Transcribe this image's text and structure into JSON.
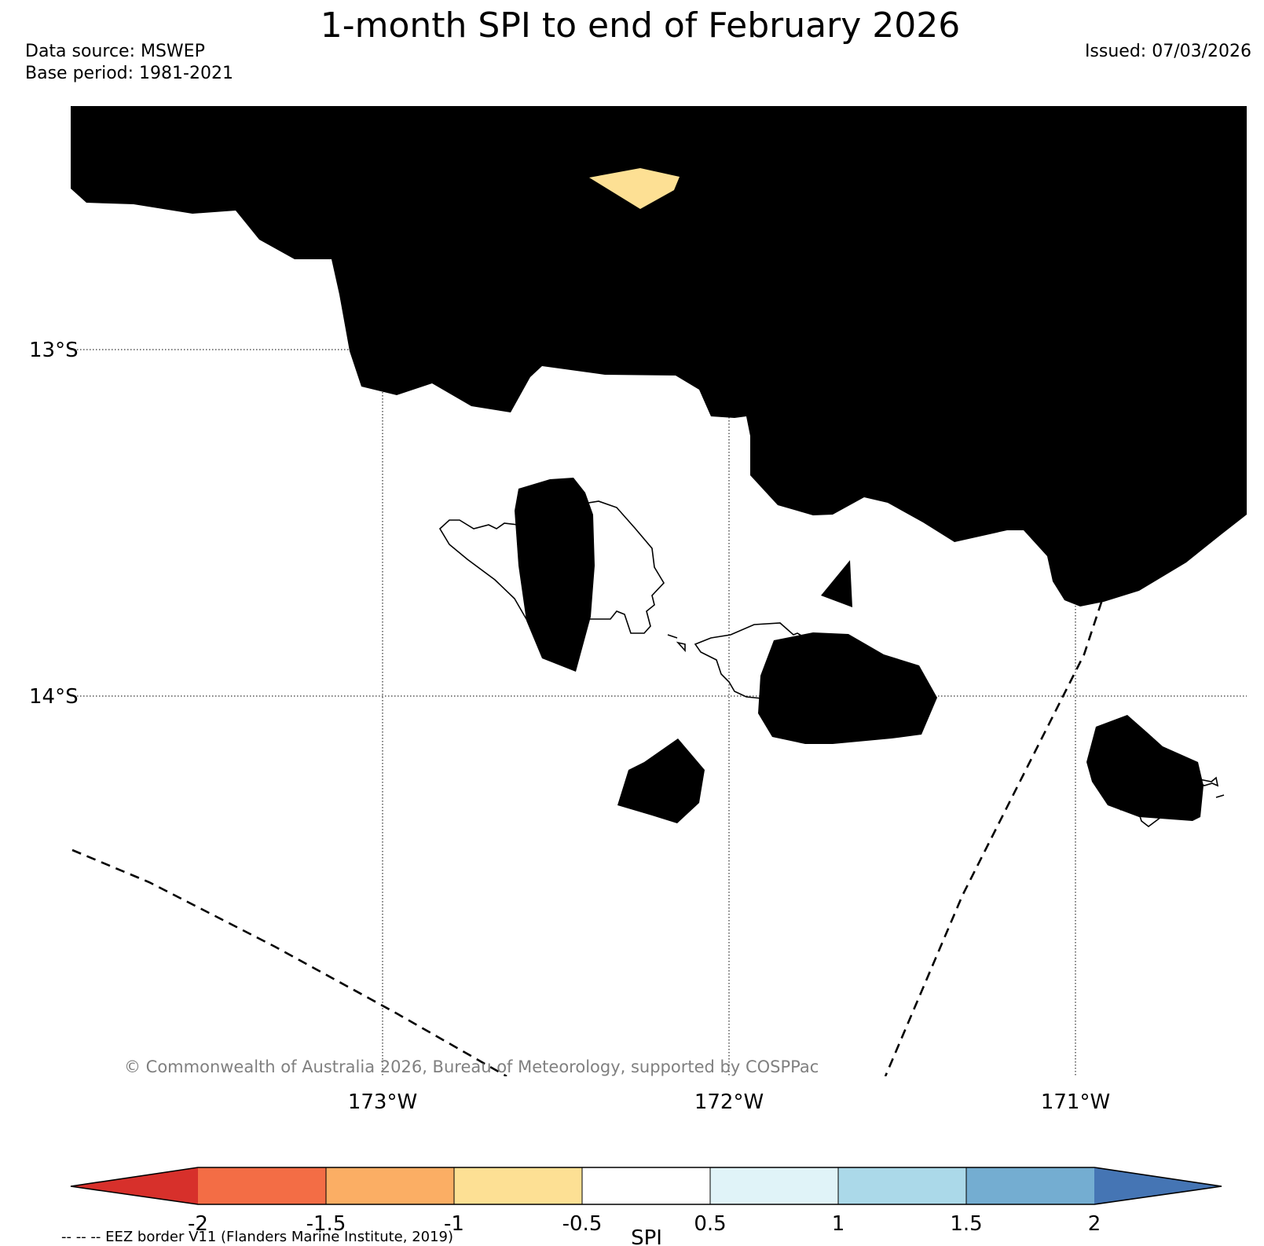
{
  "header": {
    "title": "1-month SPI to end of February 2026",
    "data_source": "Data source: MSWEP",
    "base_period": "Base period: 1981-2021",
    "issued": "Issued: 07/03/2026"
  },
  "map": {
    "lat_labels": [
      "13°S",
      "14°S"
    ],
    "lon_labels": [
      "173°W",
      "172°W",
      "171°W"
    ],
    "copyright": "© Commonwealth of Australia 2026, Bureau of Meteorology, supported by COSPPac",
    "category_colors": {
      "spi_-1.5_to_-1": "#fbae64",
      "spi_-1_to_-0.5": "#fde094",
      "spi_-0.5_to_0.5": "#ffffff"
    }
  },
  "colorbar": {
    "label": "SPI",
    "tick_labels": [
      "-2",
      "-1.5",
      "-1",
      "-0.5",
      "0.5",
      "1",
      "1.5",
      "2"
    ],
    "colors": [
      "#d7302b",
      "#f36d45",
      "#fbae64",
      "#fde094",
      "#ffffff",
      "#e0f3f8",
      "#abd9e9",
      "#74add1",
      "#4575b4"
    ]
  },
  "footnote": "-- -- -- EEZ border V11 (Flanders Marine Institute, 2019)"
}
